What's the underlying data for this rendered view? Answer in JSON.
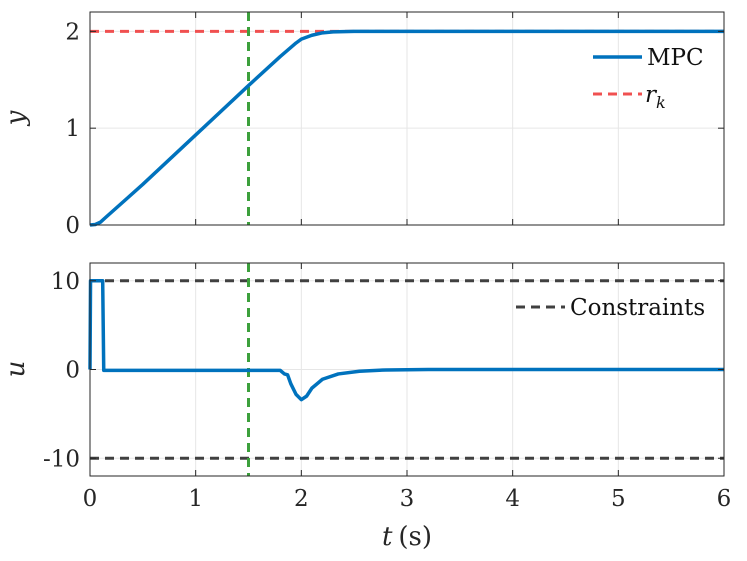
{
  "colors": {
    "mpc": "#0072BD",
    "reference": "#F05050",
    "constraint": "#404040",
    "marker": "#3CA03C",
    "grid": "#e6e6e6",
    "axis": "#262626"
  },
  "chart_data": [
    {
      "type": "line",
      "ylabel": "y",
      "xlim": [
        0,
        6
      ],
      "ylim": [
        0,
        2.2
      ],
      "xticks": [
        0,
        1,
        2,
        3,
        4,
        5,
        6
      ],
      "yticks": [
        0,
        1,
        2
      ],
      "ytick_labels": [
        "0",
        "1",
        "2"
      ],
      "grid": true,
      "legend": {
        "placement": "top-right",
        "mpc_label": "MPC",
        "ref_base": "r",
        "ref_sub": "k"
      },
      "series": [
        {
          "name": "MPC",
          "points": [
            [
              0,
              0
            ],
            [
              0.05,
              0.005
            ],
            [
              0.1,
              0.03
            ],
            [
              0.15,
              0.08
            ],
            [
              0.5,
              0.42
            ],
            [
              1.0,
              0.93
            ],
            [
              1.5,
              1.44
            ],
            [
              1.8,
              1.74
            ],
            [
              1.95,
              1.88
            ],
            [
              2.0,
              1.92
            ],
            [
              2.1,
              1.96
            ],
            [
              2.2,
              1.985
            ],
            [
              2.3,
              1.995
            ],
            [
              2.5,
              2.0
            ],
            [
              6,
              2.0
            ]
          ]
        },
        {
          "name": "r_k",
          "points": [
            [
              0,
              2
            ],
            [
              6,
              2
            ]
          ]
        }
      ],
      "vline_x": 1.5
    },
    {
      "type": "line",
      "ylabel": "u",
      "xlabel_var": "t",
      "xlabel_units": "(s)",
      "xlim": [
        0,
        6
      ],
      "ylim": [
        -12,
        12
      ],
      "xticks": [
        0,
        1,
        2,
        3,
        4,
        5,
        6
      ],
      "xtick_labels": [
        "0",
        "1",
        "2",
        "3",
        "4",
        "5",
        "6"
      ],
      "yticks": [
        10,
        0,
        -10
      ],
      "ytick_labels": [
        "10",
        "0",
        "-10"
      ],
      "grid": true,
      "legend": {
        "placement": "top-right",
        "constraints_label": "Constraints"
      },
      "series": [
        {
          "name": "MPC",
          "points": [
            [
              0,
              0
            ],
            [
              0.005,
              10
            ],
            [
              0.12,
              10
            ],
            [
              0.13,
              -0.1
            ],
            [
              1.8,
              -0.1
            ],
            [
              1.84,
              -0.5
            ],
            [
              1.87,
              -0.6
            ],
            [
              1.9,
              -1.6
            ],
            [
              1.95,
              -2.8
            ],
            [
              2.0,
              -3.4
            ],
            [
              2.05,
              -3.0
            ],
            [
              2.1,
              -2.1
            ],
            [
              2.2,
              -1.1
            ],
            [
              2.35,
              -0.5
            ],
            [
              2.55,
              -0.2
            ],
            [
              2.8,
              -0.05
            ],
            [
              3.2,
              0
            ],
            [
              6,
              0
            ]
          ]
        },
        {
          "name": "Constraints",
          "upper": 10,
          "lower": -10
        }
      ],
      "vline_x": 1.5
    }
  ]
}
